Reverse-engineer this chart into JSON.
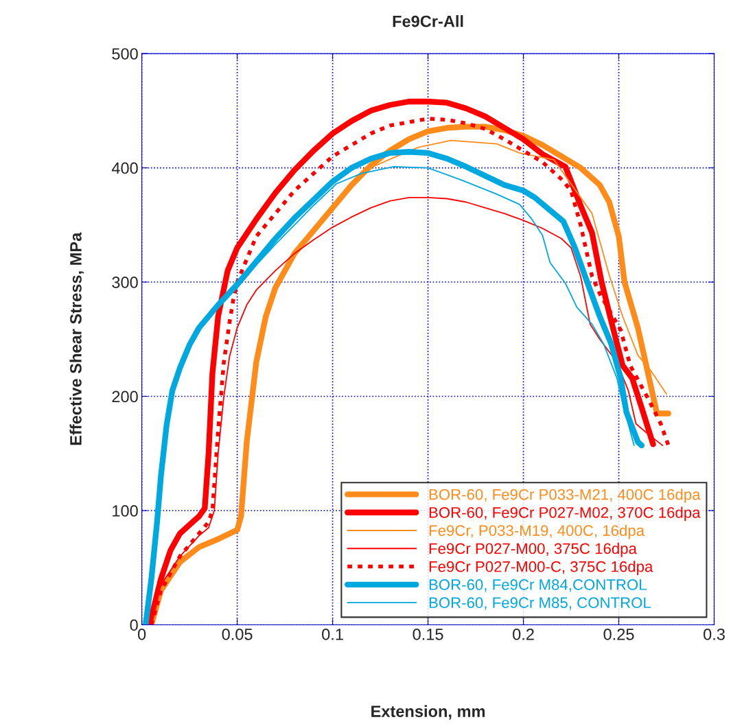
{
  "chart_data": {
    "type": "line",
    "title": "Fe9Cr-All",
    "xlabel": "Extension, mm",
    "ylabel": "Effective Shear Stress, MPa",
    "xlim": [
      0,
      0.3
    ],
    "xticks": [
      0,
      0.05,
      0.1,
      0.15,
      0.2,
      0.25,
      0.3
    ],
    "ylim": [
      0,
      500
    ],
    "yticks": [
      0,
      100,
      200,
      300,
      400,
      500
    ],
    "grid": true,
    "legend": "bottom right",
    "marker": "none",
    "series": [
      {
        "name": "BOR-60, Fe9Cr P033-M21, 400C 16dpa",
        "color": "#ff8c1a",
        "line_style": "solid",
        "x": [
          0.005,
          0.01,
          0.02,
          0.03,
          0.04,
          0.05,
          0.052,
          0.055,
          0.06,
          0.065,
          0.07,
          0.08,
          0.09,
          0.1,
          0.11,
          0.12,
          0.13,
          0.14,
          0.15,
          0.16,
          0.17,
          0.18,
          0.19,
          0.2,
          0.21,
          0.22,
          0.23,
          0.24,
          0.245,
          0.25,
          0.253,
          0.26,
          0.268,
          0.27,
          0.276
        ],
        "values": [
          0,
          30,
          55,
          68,
          75,
          83,
          95,
          160,
          230,
          270,
          295,
          325,
          345,
          365,
          385,
          402,
          415,
          425,
          432,
          435,
          436,
          436,
          433,
          428,
          420,
          410,
          400,
          385,
          370,
          340,
          300,
          260,
          200,
          185,
          185
        ]
      },
      {
        "name": "BOR-60, Fe9Cr P027-M02, 370C 16dpa",
        "color": "#ff0000",
        "line_style": "solid",
        "x": [
          0.004,
          0.01,
          0.015,
          0.02,
          0.03,
          0.033,
          0.035,
          0.037,
          0.04,
          0.045,
          0.05,
          0.06,
          0.07,
          0.08,
          0.09,
          0.1,
          0.11,
          0.12,
          0.13,
          0.14,
          0.15,
          0.16,
          0.17,
          0.18,
          0.19,
          0.2,
          0.21,
          0.222,
          0.23,
          0.236,
          0.241,
          0.246,
          0.252,
          0.257,
          0.262,
          0.268
        ],
        "values": [
          0,
          40,
          65,
          80,
          95,
          102,
          150,
          220,
          270,
          310,
          330,
          355,
          378,
          398,
          415,
          430,
          441,
          450,
          455,
          458,
          458,
          457,
          452,
          445,
          435,
          425,
          412,
          401,
          367,
          343,
          300,
          266,
          227,
          216,
          190,
          158
        ]
      },
      {
        "name": "Fe9Cr, P033-M19, 400C, 16dpa",
        "color": "#ff8c1a",
        "line_style": "solid",
        "x": [
          0.005,
          0.01,
          0.02,
          0.03,
          0.04,
          0.05,
          0.052,
          0.055,
          0.06,
          0.065,
          0.07,
          0.08,
          0.09,
          0.1,
          0.11,
          0.12,
          0.132,
          0.145,
          0.162,
          0.186,
          0.198,
          0.216,
          0.236,
          0.245,
          0.252,
          0.26,
          0.267,
          0.275
        ],
        "values": [
          0,
          32,
          57,
          70,
          77,
          85,
          97,
          162,
          232,
          272,
          297,
          327,
          347,
          367,
          387,
          400,
          409,
          418,
          424,
          421,
          413,
          407,
          360,
          306,
          270,
          236,
          222,
          202
        ]
      },
      {
        "name": "Fe9Cr P027-M00, 375C 16dpa",
        "color": "#ff0000",
        "line_style": "solid",
        "x": [
          0.005,
          0.01,
          0.02,
          0.03,
          0.035,
          0.038,
          0.04,
          0.043,
          0.046,
          0.05,
          0.055,
          0.06,
          0.07,
          0.08,
          0.09,
          0.1,
          0.11,
          0.12,
          0.13,
          0.14,
          0.15,
          0.16,
          0.17,
          0.18,
          0.19,
          0.2,
          0.21,
          0.22,
          0.225,
          0.23,
          0.235,
          0.24,
          0.249,
          0.255,
          0.259,
          0.266,
          0.273
        ],
        "values": [
          0,
          35,
          60,
          78,
          85,
          100,
          150,
          200,
          235,
          260,
          280,
          293,
          310,
          325,
          337,
          348,
          357,
          365,
          371,
          374,
          374,
          373,
          370,
          365,
          360,
          354,
          347,
          338,
          330,
          305,
          263,
          250,
          230,
          205,
          176,
          166,
          157
        ]
      },
      {
        "name": "Fe9Cr P027-M00-C, 375C 16dpa",
        "color": "#ff0000",
        "line_style": "dotted",
        "x": [
          0.005,
          0.01,
          0.02,
          0.03,
          0.035,
          0.037,
          0.04,
          0.043,
          0.046,
          0.048,
          0.05,
          0.055,
          0.06,
          0.07,
          0.08,
          0.09,
          0.1,
          0.11,
          0.12,
          0.13,
          0.14,
          0.15,
          0.16,
          0.17,
          0.18,
          0.19,
          0.2,
          0.21,
          0.22,
          0.225,
          0.23,
          0.236,
          0.24,
          0.251,
          0.256,
          0.266,
          0.272,
          0.276
        ],
        "values": [
          0,
          30,
          60,
          80,
          90,
          100,
          170,
          230,
          265,
          285,
          300,
          320,
          340,
          360,
          380,
          395,
          410,
          420,
          430,
          437,
          440,
          443,
          442,
          439,
          434,
          425,
          415,
          405,
          390,
          380,
          350,
          305,
          290,
          258,
          227,
          196,
          176,
          157
        ]
      },
      {
        "name": "BOR-60, Fe9Cr M84,CONTROL",
        "color": "#00a8e0",
        "line_style": "solid",
        "x": [
          0.002,
          0.005,
          0.008,
          0.01,
          0.013,
          0.016,
          0.02,
          0.025,
          0.03,
          0.04,
          0.05,
          0.06,
          0.07,
          0.08,
          0.09,
          0.1,
          0.11,
          0.12,
          0.13,
          0.14,
          0.15,
          0.16,
          0.17,
          0.18,
          0.19,
          0.2,
          0.206,
          0.221,
          0.227,
          0.233,
          0.24,
          0.246,
          0.251,
          0.254,
          0.26,
          0.262
        ],
        "values": [
          0,
          40,
          90,
          130,
          175,
          205,
          225,
          245,
          260,
          280,
          298,
          318,
          338,
          356,
          372,
          388,
          400,
          408,
          413,
          414,
          413,
          408,
          401,
          393,
          385,
          380,
          374,
          353,
          330,
          302,
          270,
          246,
          216,
          186,
          160,
          157
        ]
      },
      {
        "name": "BOR-60, Fe9Cr M85, CONTROL",
        "color": "#00a8e0",
        "line_style": "solid",
        "x": [
          0.002,
          0.005,
          0.008,
          0.01,
          0.013,
          0.016,
          0.02,
          0.025,
          0.03,
          0.04,
          0.05,
          0.06,
          0.07,
          0.08,
          0.09,
          0.102,
          0.115,
          0.132,
          0.15,
          0.168,
          0.186,
          0.198,
          0.204,
          0.21,
          0.214,
          0.222,
          0.228,
          0.236,
          0.242,
          0.249,
          0.252,
          0.258
        ],
        "values": [
          0,
          38,
          88,
          128,
          172,
          202,
          222,
          243,
          258,
          278,
          295,
          315,
          333,
          350,
          367,
          386,
          395,
          401,
          400,
          389,
          377,
          368,
          356,
          341,
          317,
          299,
          278,
          263,
          246,
          216,
          194,
          157
        ]
      }
    ]
  }
}
